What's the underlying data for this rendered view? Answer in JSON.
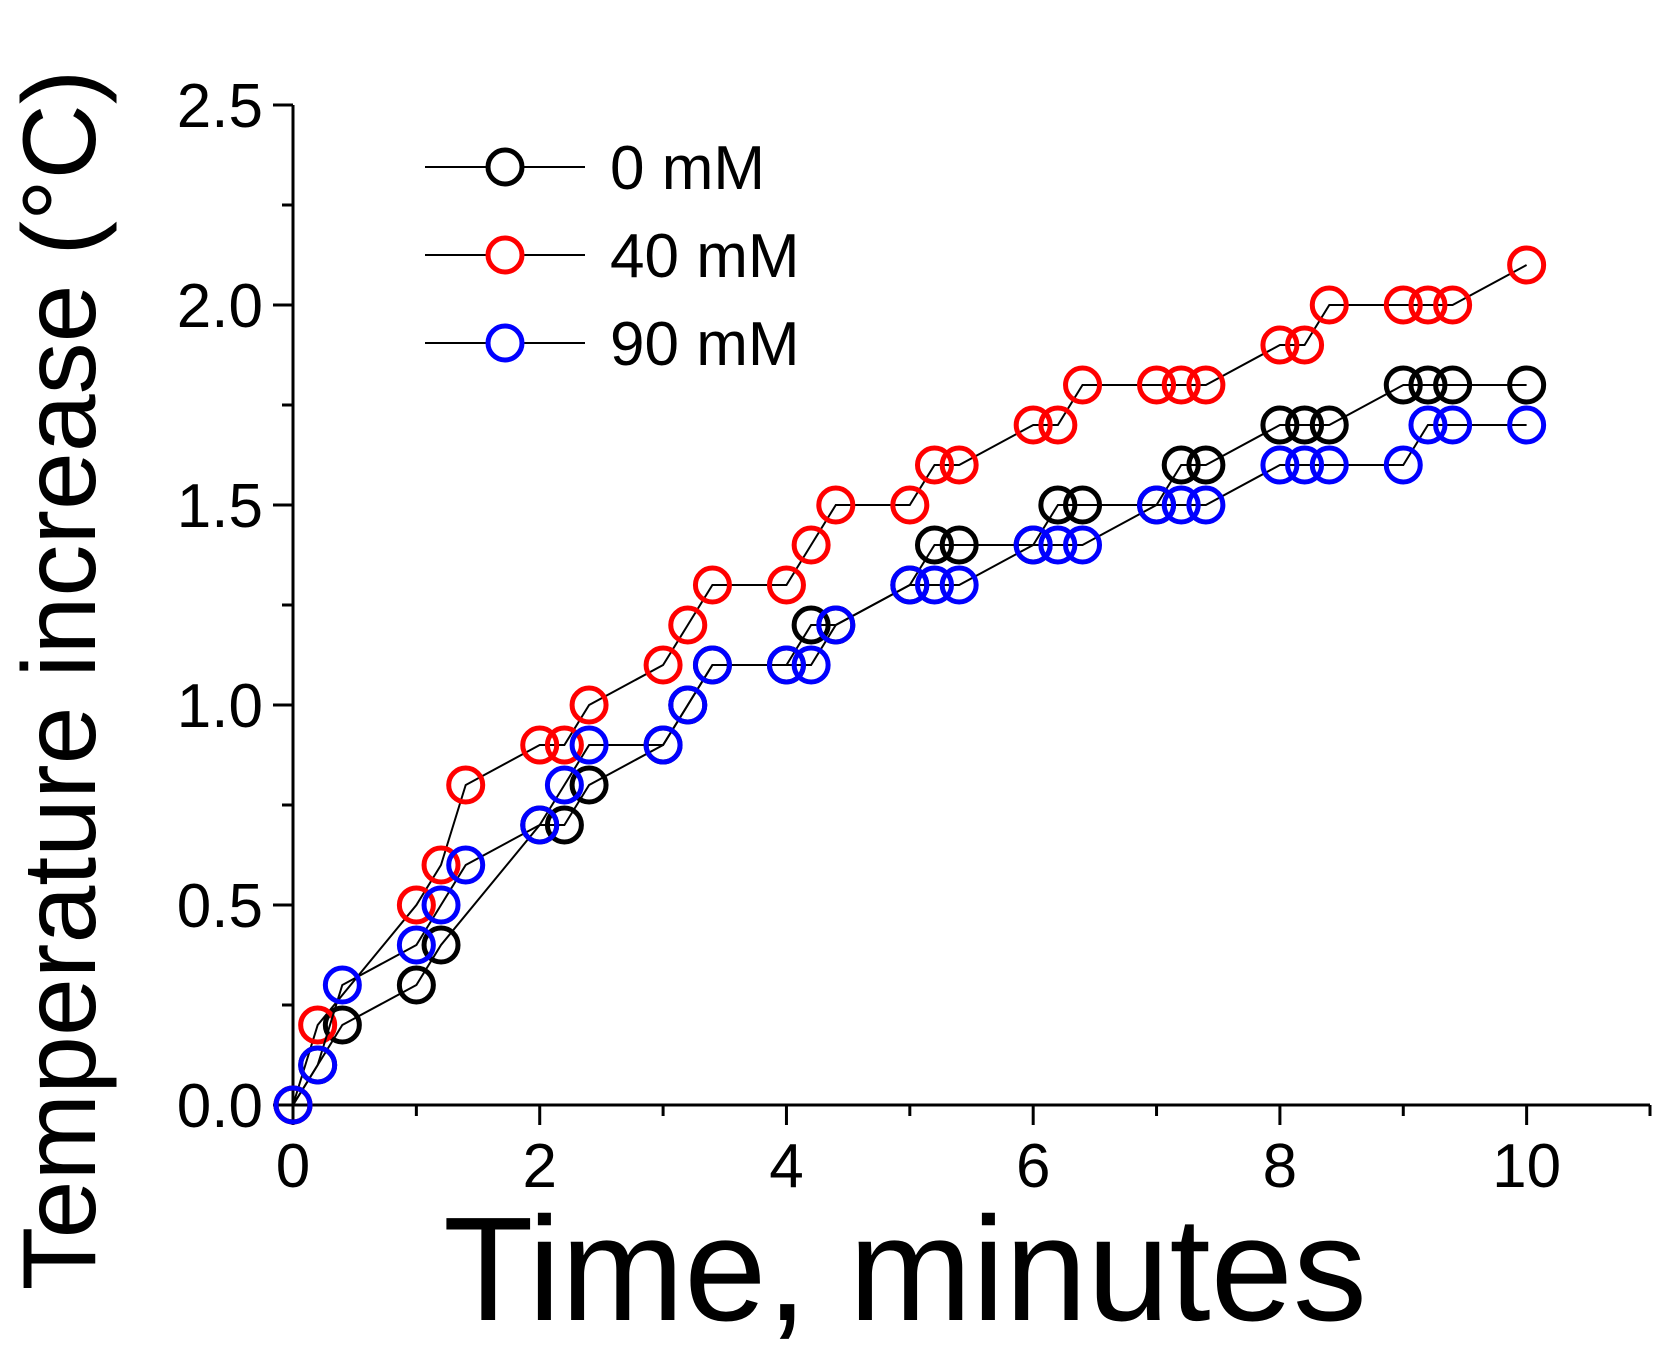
{
  "chart_data": {
    "type": "scatter",
    "title": "",
    "xlabel": "Time, minutes",
    "ylabel": "Temperature increase (°C)",
    "xlim": [
      0,
      11
    ],
    "ylim": [
      0,
      2.5
    ],
    "x_ticks": [
      0,
      2,
      4,
      6,
      8,
      10
    ],
    "y_ticks": [
      0,
      0.5,
      1.0,
      1.5,
      2.0,
      2.5
    ],
    "x_tick_labels": [
      "0",
      "2",
      "4",
      "6",
      "8",
      "10"
    ],
    "y_tick_labels": [
      "0.0",
      "0.5",
      "1.0",
      "1.5",
      "2.0",
      "2.5"
    ],
    "x_minor_step": 1,
    "y_minor_step": 0.25,
    "grid": false,
    "legend_position": "top-left",
    "marker": "open-circle",
    "series": [
      {
        "name": "0 mM",
        "color": "#000000",
        "x": [
          0,
          0.2,
          0.4,
          1.0,
          1.2,
          2.0,
          2.2,
          2.4,
          3.0,
          3.2,
          3.4,
          4.0,
          4.2,
          4.4,
          5.0,
          5.2,
          5.4,
          6.0,
          6.2,
          6.4,
          7.0,
          7.2,
          7.4,
          8.0,
          8.2,
          8.4,
          9.0,
          9.2,
          9.4,
          10.0
        ],
        "y": [
          0,
          0.1,
          0.2,
          0.3,
          0.4,
          0.7,
          0.7,
          0.8,
          0.9,
          1.0,
          1.1,
          1.1,
          1.2,
          1.2,
          1.3,
          1.4,
          1.4,
          1.4,
          1.5,
          1.5,
          1.5,
          1.6,
          1.6,
          1.7,
          1.7,
          1.7,
          1.8,
          1.8,
          1.8,
          1.8
        ]
      },
      {
        "name": "40 mM",
        "color": "#ff0000",
        "x": [
          0,
          0.2,
          1.0,
          1.2,
          1.4,
          2.0,
          2.2,
          2.4,
          3.0,
          3.2,
          3.4,
          4.0,
          4.2,
          4.4,
          5.0,
          5.2,
          5.4,
          6.0,
          6.2,
          6.4,
          7.0,
          7.2,
          7.4,
          8.0,
          8.2,
          8.4,
          9.0,
          9.2,
          9.4,
          10.0
        ],
        "y": [
          0,
          0.2,
          0.5,
          0.6,
          0.8,
          0.9,
          0.9,
          1.0,
          1.1,
          1.2,
          1.3,
          1.3,
          1.4,
          1.5,
          1.5,
          1.6,
          1.6,
          1.7,
          1.7,
          1.8,
          1.8,
          1.8,
          1.8,
          1.9,
          1.9,
          2.0,
          2.0,
          2.0,
          2.0,
          2.1
        ]
      },
      {
        "name": "90 mM",
        "color": "#0000ff",
        "x": [
          0,
          0.2,
          0.4,
          1.0,
          1.2,
          1.4,
          2.0,
          2.2,
          2.4,
          3.0,
          3.2,
          3.4,
          4.0,
          4.2,
          4.4,
          5.0,
          5.2,
          5.4,
          6.0,
          6.2,
          6.4,
          7.0,
          7.2,
          7.4,
          8.0,
          8.2,
          8.4,
          9.0,
          9.2,
          9.4,
          10.0
        ],
        "y": [
          0,
          0.1,
          0.3,
          0.4,
          0.5,
          0.6,
          0.7,
          0.8,
          0.9,
          0.9,
          1.0,
          1.1,
          1.1,
          1.1,
          1.2,
          1.3,
          1.3,
          1.3,
          1.4,
          1.4,
          1.4,
          1.5,
          1.5,
          1.5,
          1.6,
          1.6,
          1.6,
          1.6,
          1.7,
          1.7,
          1.7
        ]
      }
    ]
  }
}
